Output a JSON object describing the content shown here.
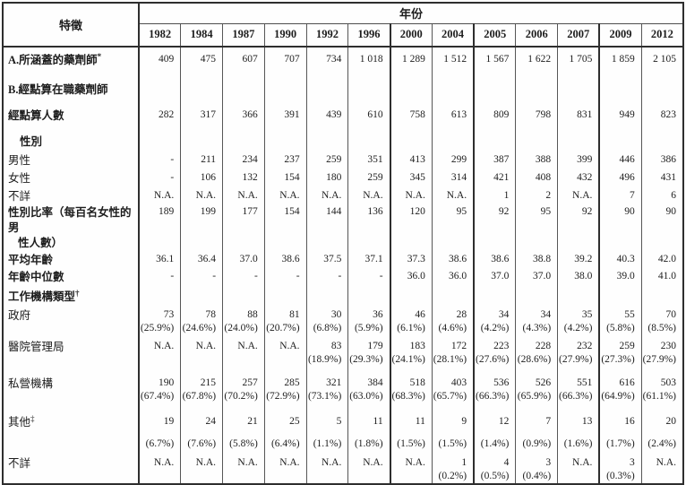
{
  "table": {
    "corner_label": "特徵",
    "years_header": "年份",
    "years": [
      "1982",
      "1984",
      "1987",
      "1990",
      "1992",
      "1996",
      "2000",
      "2004",
      "2005",
      "2006",
      "2007",
      "2009",
      "2012"
    ],
    "footnote_markers": {
      "covered": "*",
      "org_type": "†",
      "others": "‡"
    },
    "rows": [
      {
        "name": "covered",
        "label": "A.所涵蓋的藥劑師",
        "sup": "*",
        "bold": true,
        "indent": 0,
        "cells": [
          [
            "409"
          ],
          [
            "475"
          ],
          [
            "607"
          ],
          [
            "707"
          ],
          [
            "734"
          ],
          [
            "1 018"
          ],
          [
            "1 289"
          ],
          [
            "1 512"
          ],
          [
            "1 567"
          ],
          [
            "1 622"
          ],
          [
            "1 705"
          ],
          [
            "1 859"
          ],
          [
            "2 105"
          ]
        ]
      },
      {
        "name": "working",
        "label": "B.經點算在職藥劑師",
        "sup": "",
        "bold": true,
        "indent": 0,
        "cells": []
      },
      {
        "name": "enumerated",
        "label": "經點算人數",
        "sup": "",
        "bold": true,
        "indent": 0,
        "cells": [
          [
            "282"
          ],
          [
            "317"
          ],
          [
            "366"
          ],
          [
            "391"
          ],
          [
            "439"
          ],
          [
            "610"
          ],
          [
            "758"
          ],
          [
            "613"
          ],
          [
            "809"
          ],
          [
            "798"
          ],
          [
            "831"
          ],
          [
            "949"
          ],
          [
            "823"
          ]
        ]
      },
      {
        "name": "sex-section",
        "label": "性別",
        "sup": "",
        "bold": true,
        "indent": 1,
        "cells": []
      },
      {
        "name": "male",
        "label": "男性",
        "sup": "",
        "bold": false,
        "indent": 0,
        "cells": [
          [
            "-"
          ],
          [
            "211"
          ],
          [
            "234"
          ],
          [
            "237"
          ],
          [
            "259"
          ],
          [
            "351"
          ],
          [
            "413"
          ],
          [
            "299"
          ],
          [
            "387"
          ],
          [
            "388"
          ],
          [
            "399"
          ],
          [
            "446"
          ],
          [
            "386"
          ]
        ]
      },
      {
        "name": "female",
        "label": "女性",
        "sup": "",
        "bold": false,
        "indent": 0,
        "cells": [
          [
            "-"
          ],
          [
            "106"
          ],
          [
            "132"
          ],
          [
            "154"
          ],
          [
            "180"
          ],
          [
            "259"
          ],
          [
            "345"
          ],
          [
            "314"
          ],
          [
            "421"
          ],
          [
            "408"
          ],
          [
            "432"
          ],
          [
            "496"
          ],
          [
            "431"
          ]
        ]
      },
      {
        "name": "sex-unknown",
        "label": "不詳",
        "sup": "",
        "bold": false,
        "indent": 0,
        "cells": [
          [
            "N.A."
          ],
          [
            "N.A."
          ],
          [
            "N.A."
          ],
          [
            "N.A."
          ],
          [
            "N.A."
          ],
          [
            "N.A."
          ],
          [
            "N.A."
          ],
          [
            "N.A."
          ],
          [
            "1"
          ],
          [
            "2"
          ],
          [
            "N.A."
          ],
          [
            "7"
          ],
          [
            "6"
          ]
        ]
      },
      {
        "name": "sex-ratio",
        "label": "性別比率（每百名女性的男",
        "label2": "性人數）",
        "sup": "",
        "bold": true,
        "indent": 0,
        "cells": [
          [
            "189"
          ],
          [
            "199"
          ],
          [
            "177"
          ],
          [
            "154"
          ],
          [
            "144"
          ],
          [
            "136"
          ],
          [
            "120"
          ],
          [
            "95"
          ],
          [
            "92"
          ],
          [
            "95"
          ],
          [
            "92"
          ],
          [
            "90"
          ],
          [
            "90"
          ]
        ]
      },
      {
        "name": "mean-age",
        "label": "平均年齡",
        "sup": "",
        "bold": true,
        "indent": 0,
        "cells": [
          [
            "36.1"
          ],
          [
            "36.4"
          ],
          [
            "37.0"
          ],
          [
            "38.6"
          ],
          [
            "37.5"
          ],
          [
            "37.1"
          ],
          [
            "37.3"
          ],
          [
            "38.6"
          ],
          [
            "38.6"
          ],
          [
            "38.8"
          ],
          [
            "39.2"
          ],
          [
            "40.3"
          ],
          [
            "42.0"
          ]
        ]
      },
      {
        "name": "median-age",
        "label": "年齡中位數",
        "sup": "",
        "bold": true,
        "indent": 0,
        "cells": [
          [
            "-"
          ],
          [
            "-"
          ],
          [
            "-"
          ],
          [
            "-"
          ],
          [
            "-"
          ],
          [
            "-"
          ],
          [
            "36.0"
          ],
          [
            "36.0"
          ],
          [
            "37.0"
          ],
          [
            "37.0"
          ],
          [
            "38.0"
          ],
          [
            "39.0"
          ],
          [
            "41.0"
          ]
        ]
      },
      {
        "name": "org-type",
        "label": "工作機構類型",
        "sup": "†",
        "bold": true,
        "indent": 0,
        "cells": []
      },
      {
        "name": "government",
        "label": "政府",
        "sup": "",
        "bold": false,
        "indent": 0,
        "cells": [
          [
            "73",
            "(25.9%)"
          ],
          [
            "78",
            "(24.6%)"
          ],
          [
            "88",
            "(24.0%)"
          ],
          [
            "81",
            "(20.7%)"
          ],
          [
            "30",
            "(6.8%)"
          ],
          [
            "36",
            "(5.9%)"
          ],
          [
            "46",
            "(6.1%)"
          ],
          [
            "28",
            "(4.6%)"
          ],
          [
            "34",
            "(4.2%)"
          ],
          [
            "34",
            "(4.3%)"
          ],
          [
            "35",
            "(4.2%)"
          ],
          [
            "55",
            "(5.8%)"
          ],
          [
            "70",
            "(8.5%)"
          ]
        ]
      },
      {
        "name": "hospital-authority",
        "label": "醫院管理局",
        "sup": "",
        "bold": false,
        "indent": 0,
        "cells": [
          [
            "N.A."
          ],
          [
            "N.A."
          ],
          [
            "N.A."
          ],
          [
            "N.A."
          ],
          [
            "83",
            "(18.9%)"
          ],
          [
            "179",
            "(29.3%)"
          ],
          [
            "183",
            "(24.1%)"
          ],
          [
            "172",
            "(28.1%)"
          ],
          [
            "223",
            "(27.6%)"
          ],
          [
            "228",
            "(28.6%)"
          ],
          [
            "232",
            "(27.9%)"
          ],
          [
            "259",
            "(27.3%)"
          ],
          [
            "230",
            "(27.9%)"
          ]
        ]
      },
      {
        "name": "private",
        "label": "私營機構",
        "sup": "",
        "bold": false,
        "indent": 0,
        "cells": [
          [
            "190",
            "(67.4%)"
          ],
          [
            "215",
            "(67.8%)"
          ],
          [
            "257",
            "(70.2%)"
          ],
          [
            "285",
            "(72.9%)"
          ],
          [
            "321",
            "(73.1%)"
          ],
          [
            "384",
            "(63.0%)"
          ],
          [
            "518",
            "(68.3%)"
          ],
          [
            "403",
            "(65.7%)"
          ],
          [
            "536",
            "(66.3%)"
          ],
          [
            "526",
            "(65.9%)"
          ],
          [
            "551",
            "(66.3%)"
          ],
          [
            "616",
            "(64.9%)"
          ],
          [
            "503",
            "(61.1%)"
          ]
        ]
      },
      {
        "name": "others",
        "label": "其他",
        "sup": "‡",
        "bold": false,
        "indent": 0,
        "cells": [
          [
            "19",
            "(6.7%)"
          ],
          [
            "24",
            "(7.6%)"
          ],
          [
            "21",
            "(5.8%)"
          ],
          [
            "25",
            "(6.4%)"
          ],
          [
            "5",
            "(1.1%)"
          ],
          [
            "11",
            "(1.8%)"
          ],
          [
            "11",
            "(1.5%)"
          ],
          [
            "9",
            "(1.5%)"
          ],
          [
            "12",
            "(1.4%)"
          ],
          [
            "7",
            "(0.9%)"
          ],
          [
            "13",
            "(1.6%)"
          ],
          [
            "16",
            "(1.7%)"
          ],
          [
            "20",
            "(2.4%)"
          ]
        ]
      },
      {
        "name": "unknown-org",
        "label": "不詳",
        "sup": "",
        "bold": false,
        "indent": 0,
        "cells": [
          [
            "N.A."
          ],
          [
            "N.A."
          ],
          [
            "N.A."
          ],
          [
            "N.A."
          ],
          [
            "N.A."
          ],
          [
            "N.A."
          ],
          [
            "N.A."
          ],
          [
            "1",
            "(0.2%)"
          ],
          [
            "4",
            "(0.5%)"
          ],
          [
            "3",
            "(0.4%)"
          ],
          [
            "N.A."
          ],
          [
            "3",
            "(0.3%)"
          ],
          [
            "N.A."
          ]
        ]
      }
    ]
  }
}
